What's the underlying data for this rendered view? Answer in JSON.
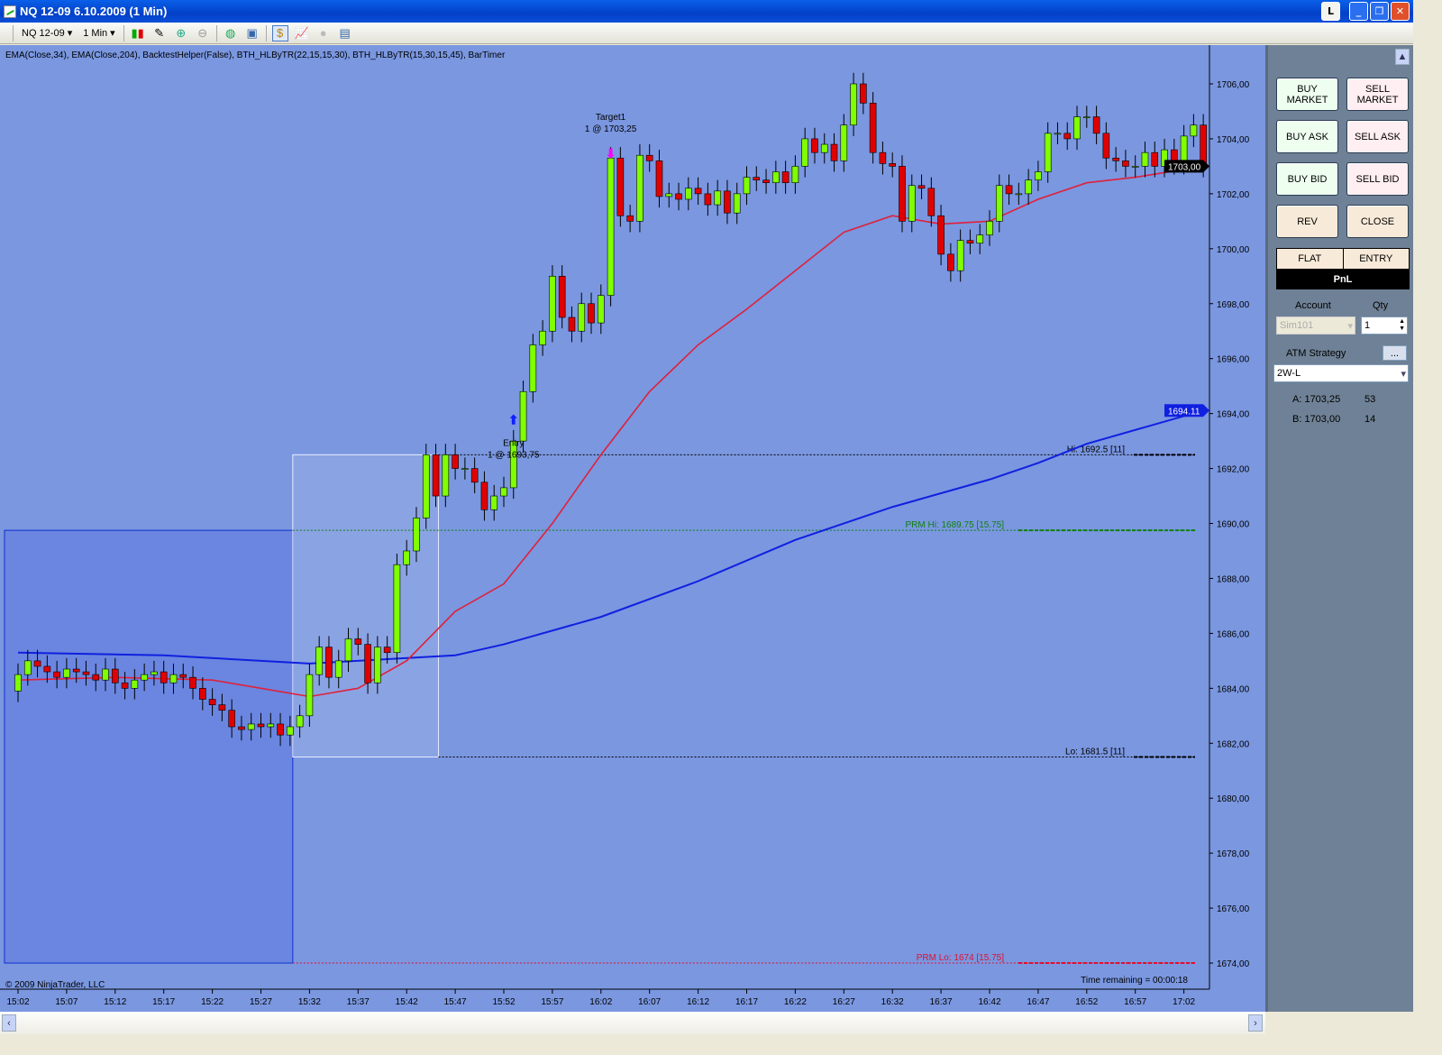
{
  "window": {
    "title": "NQ 12-09  6.10.2009 (1 Min)",
    "buttons": [
      "L",
      "_",
      "❐",
      "✕"
    ]
  },
  "toolbar": {
    "instrument": "NQ 12-09",
    "interval": "1 Min",
    "icons": [
      "candlestick-icon",
      "pencil-icon",
      "zoom-in-icon",
      "zoom-out-icon",
      "globe-icon",
      "properties-icon",
      "strategy-icon",
      "chart-trader-icon",
      "dollar-icon",
      "data-box-icon"
    ]
  },
  "indicators_label": "EMA(Close,34), EMA(Close,204), BacktestHelper(False), BTH_HLByTR(22,15,15,30), BTH_HLByTR(15,30,15,45), BarTimer",
  "copyright": "© 2009 NinjaTrader, LLC",
  "time_remaining": "Time remaining = 00:00:18",
  "colors": {
    "background": "#7a97e0",
    "up": "#80ff00",
    "down": "#e00000",
    "ema34": "#e0203a",
    "ema204": "#1020e0",
    "prm_hi": "#108010",
    "prm_lo": "#e01030"
  },
  "chart_data": {
    "type": "candlestick",
    "x_start": "15:02",
    "interval": "1 Min",
    "xticks": [
      "15:02",
      "15:07",
      "15:12",
      "15:17",
      "15:22",
      "15:27",
      "15:32",
      "15:37",
      "15:42",
      "15:47",
      "15:52",
      "15:57",
      "16:02",
      "16:07",
      "16:12",
      "16:17",
      "16:22",
      "16:27",
      "16:32",
      "16:37",
      "16:42",
      "16:47",
      "16:52",
      "16:57",
      "17:02"
    ],
    "yticks": [
      "1674,00",
      "1676,00",
      "1678,00",
      "1680,00",
      "1682,00",
      "1684,00",
      "1686,00",
      "1688,00",
      "1690,00",
      "1692,00",
      "1694,00",
      "1696,00",
      "1698,00",
      "1700,00",
      "1702,00",
      "1704,00",
      "1706,00"
    ],
    "ylim": [
      1673,
      1707.5
    ],
    "first_open": 1683.9,
    "close": [
      1684.5,
      1685.0,
      1684.8,
      1684.6,
      1684.4,
      1684.7,
      1684.6,
      1684.5,
      1684.3,
      1684.7,
      1684.2,
      1684.0,
      1684.3,
      1684.5,
      1684.6,
      1684.2,
      1684.5,
      1684.4,
      1684.0,
      1683.6,
      1683.4,
      1683.2,
      1682.6,
      1682.5,
      1682.7,
      1682.6,
      1682.7,
      1682.3,
      1682.6,
      1683.0,
      1684.5,
      1685.5,
      1684.4,
      1685.0,
      1685.8,
      1685.6,
      1684.2,
      1685.5,
      1685.3,
      1688.5,
      1689.0,
      1690.2,
      1692.5,
      1691.0,
      1692.5,
      1692.0,
      1692.0,
      1691.5,
      1690.5,
      1691.0,
      1691.3,
      1693.0,
      1694.8,
      1696.5,
      1697.0,
      1699.0,
      1697.5,
      1697.0,
      1698.0,
      1697.3,
      1698.3,
      1703.3,
      1701.2,
      1701.0,
      1703.4,
      1703.2,
      1701.9,
      1702.0,
      1701.8,
      1702.2,
      1702.0,
      1701.6,
      1702.1,
      1701.3,
      1702.0,
      1702.6,
      1702.5,
      1702.4,
      1702.8,
      1702.4,
      1703.0,
      1704.0,
      1703.5,
      1703.8,
      1703.2,
      1704.5,
      1706.0,
      1705.3,
      1703.5,
      1703.1,
      1703.0,
      1701.0,
      1702.3,
      1702.2,
      1701.2,
      1699.8,
      1699.2,
      1700.3,
      1700.2,
      1700.5,
      1701.0,
      1702.3,
      1702.0,
      1702.0,
      1702.5,
      1702.8,
      1704.2,
      1704.2,
      1704.0,
      1704.8,
      1704.8,
      1704.2,
      1703.3,
      1703.2,
      1703.0,
      1703.0,
      1703.5,
      1703.0,
      1703.6,
      1703.1,
      1704.1,
      1704.5,
      1703.0
    ],
    "ema34": {
      "name": "EMA(Close,34)",
      "t": [
        "15:02",
        "15:12",
        "15:22",
        "15:27",
        "15:32",
        "15:37",
        "15:42",
        "15:47",
        "15:52",
        "15:57",
        "16:02",
        "16:07",
        "16:12",
        "16:17",
        "16:22",
        "16:27",
        "16:32",
        "16:37",
        "16:42",
        "16:47",
        "16:52",
        "16:57",
        "17:04"
      ],
      "v": [
        1684.3,
        1684.4,
        1684.3,
        1684.0,
        1683.7,
        1684.0,
        1685.0,
        1686.8,
        1687.8,
        1690.0,
        1692.5,
        1694.8,
        1696.5,
        1697.8,
        1699.2,
        1700.6,
        1701.2,
        1700.9,
        1701.0,
        1701.8,
        1702.4,
        1702.6,
        1703.0
      ]
    },
    "ema204": {
      "name": "EMA(Close,204)",
      "t": [
        "15:02",
        "15:17",
        "15:32",
        "15:47",
        "15:52",
        "16:02",
        "16:12",
        "16:22",
        "16:32",
        "16:42",
        "16:47",
        "16:52",
        "17:04"
      ],
      "v": [
        1685.3,
        1685.2,
        1684.9,
        1685.2,
        1685.6,
        1686.6,
        1687.9,
        1689.4,
        1690.6,
        1691.6,
        1692.2,
        1692.9,
        1694.11
      ]
    },
    "levels": [
      {
        "label": "Hi: 1692.5 [11]",
        "value": 1692.5,
        "color": "#000000"
      },
      {
        "label": "Lo: 1681.5 [11]",
        "value": 1681.5,
        "color": "#000000"
      },
      {
        "label": "PRM Hi: 1689.75 [15.75]",
        "value": 1689.75,
        "color": "#108010"
      },
      {
        "label": "PRM Lo: 1674 [15.75]",
        "value": 1674,
        "color": "#e01030"
      }
    ],
    "range_box": {
      "from": "15:30",
      "to": "15:45",
      "low": 1681.5,
      "high": 1692.5
    },
    "prm_zone": {
      "from": "15:02",
      "to": "15:30",
      "low": 1674,
      "high": 1689.75
    },
    "executions": [
      {
        "name": "Entry",
        "text": "1 @ 1693,75",
        "time": "15:53",
        "price": 1693.75,
        "side": "buy"
      },
      {
        "name": "Target1",
        "text": "1 @ 1703,25",
        "time": "16:03",
        "price": 1703.25,
        "side": "sell"
      }
    ],
    "price_tags": [
      {
        "text": "1703,00",
        "value": 1703.0,
        "color": "#000000"
      },
      {
        "text": "1694.11",
        "value": 1694.11,
        "color": "#1020e0"
      }
    ]
  },
  "panel": {
    "buttons": [
      {
        "label": "BUY MARKET",
        "kind": "buy"
      },
      {
        "label": "SELL MARKET",
        "kind": "sell"
      },
      {
        "label": "BUY ASK",
        "kind": "buy"
      },
      {
        "label": "SELL ASK",
        "kind": "sell"
      },
      {
        "label": "BUY BID",
        "kind": "buy"
      },
      {
        "label": "SELL BID",
        "kind": "sell"
      },
      {
        "label": "REV",
        "kind": "rc"
      },
      {
        "label": "CLOSE",
        "kind": "rc"
      }
    ],
    "position": "FLAT",
    "entry": "ENTRY",
    "pnl": "PnL",
    "account_label": "Account",
    "account": "Sim101",
    "qty_label": "Qty",
    "qty": "1",
    "atm_label": "ATM Strategy",
    "atm_btn": "...",
    "atm": "2W-L",
    "ask": "A: 1703,25",
    "ask_size": "53",
    "bid": "B: 1703,00",
    "bid_size": "14"
  }
}
